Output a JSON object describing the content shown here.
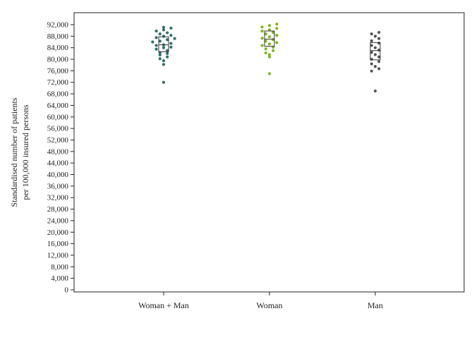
{
  "chart_data": {
    "type": "scatter",
    "subtype": "beeswarm-with-box",
    "title": "",
    "ylabel_lines": [
      "Standardised number of patients",
      "per 100,000 insured persons"
    ],
    "xlabel": "",
    "ylim": [
      0,
      94000
    ],
    "yticks": [
      0,
      4000,
      8000,
      12000,
      16000,
      20000,
      24000,
      28000,
      32000,
      36000,
      40000,
      44000,
      48000,
      52000,
      56000,
      60000,
      64000,
      68000,
      72000,
      76000,
      80000,
      84000,
      88000,
      92000
    ],
    "ytick_labels": [
      "0",
      "4,000",
      "8,000",
      "12,000",
      "16,000",
      "20,000",
      "24,000",
      "28,000",
      "32,000",
      "36,000",
      "40,000",
      "44,000",
      "48,000",
      "52,000",
      "56,000",
      "60,000",
      "64,000",
      "68,000",
      "72,000",
      "76,000",
      "80,000",
      "84,000",
      "88,000",
      "92,000"
    ],
    "grid": false,
    "categories": [
      "Woman + Man",
      "Woman",
      "Man"
    ],
    "series": [
      {
        "category": "Woman + Man",
        "color": "#2e6e6a",
        "box": {
          "q1": 82600,
          "median": 85000,
          "q3": 87800
        },
        "values": [
          72000,
          78200,
          79500,
          80200,
          80800,
          81500,
          82000,
          82300,
          83000,
          83500,
          84000,
          84200,
          84800,
          85000,
          85500,
          86000,
          86300,
          86800,
          87200,
          87500,
          88000,
          88300,
          88800,
          89200,
          89800,
          90200,
          90800,
          91100
        ]
      },
      {
        "category": "Woman",
        "color": "#7cb71c",
        "box": {
          "q1": 84500,
          "median": 87000,
          "q3": 89800
        },
        "values": [
          75000,
          80800,
          81600,
          82200,
          83000,
          83600,
          84200,
          84800,
          85300,
          85800,
          86300,
          86800,
          87300,
          87800,
          88300,
          88800,
          89300,
          89800,
          90200,
          90700,
          91200,
          91700,
          92200
        ]
      },
      {
        "category": "Man",
        "color": "#555555",
        "box": {
          "q1": 79800,
          "median": 83000,
          "q3": 85800
        },
        "values": [
          69000,
          75900,
          76700,
          77500,
          78400,
          79200,
          80000,
          80800,
          81600,
          82400,
          83200,
          84000,
          84800,
          85600,
          86400,
          87200,
          88000,
          88800,
          89300
        ]
      }
    ]
  }
}
